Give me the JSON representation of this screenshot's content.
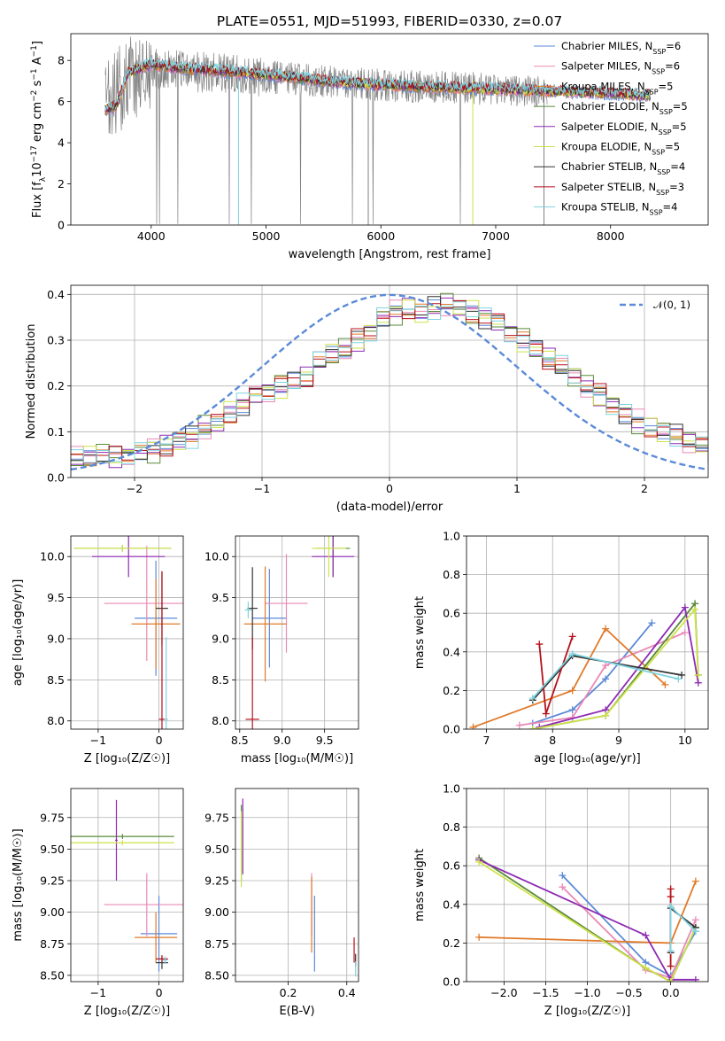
{
  "colors": {
    "chabrier_miles": "#5b8ad8",
    "salpeter_miles": "#e98ab6",
    "kroupa_miles": "#e07a2a",
    "chabrier_elodie": "#5a8a3a",
    "salpeter_elodie": "#8e2bb3",
    "kroupa_elodie": "#cde24a",
    "chabrier_stelib": "#333333",
    "salpeter_stelib": "#b5121b",
    "kroupa_stelib": "#7fd3e0",
    "data": "#808080",
    "normal": "#5b8ad8",
    "grid": "#b0b0b0"
  },
  "chart_data": [
    {
      "type": "line",
      "title": "PLATE=0551, MJD=51993, FIBERID=0330, z=0.07",
      "xlabel": "wavelength [Angstrom, rest frame]",
      "ylabel": "Flux [f$_\\lambda$10$^{-17}$ erg cm$^{-2}$ s$^{-1}$ A$^{-1}$]",
      "xlim": [
        3300,
        8850
      ],
      "ylim": [
        0,
        9.3
      ],
      "xticks": [
        "4000",
        "5000",
        "6000",
        "7000",
        "8000"
      ],
      "yticks": [
        "0",
        "2",
        "4",
        "6",
        "8"
      ],
      "legend_position": "top-right",
      "grid": false,
      "legend": [
        {
          "label": "Chabrier MILES, N",
          "sub": "SSP",
          "suffix": "=6",
          "color_key": "chabrier_miles"
        },
        {
          "label": "Salpeter MILES, N",
          "sub": "SSP",
          "suffix": "=6",
          "color_key": "salpeter_miles"
        },
        {
          "label": "Kroupa MILES, N",
          "sub": "SSP",
          "suffix": "=5",
          "color_key": "kroupa_miles"
        },
        {
          "label": "Chabrier ELODIE, N",
          "sub": "SSP",
          "suffix": "=5",
          "color_key": "chabrier_elodie"
        },
        {
          "label": "Salpeter ELODIE, N",
          "sub": "SSP",
          "suffix": "=5",
          "color_key": "salpeter_elodie"
        },
        {
          "label": "Kroupa ELODIE, N",
          "sub": "SSP",
          "suffix": "=5",
          "color_key": "kroupa_elodie"
        },
        {
          "label": "Chabrier STELIB, N",
          "sub": "SSP",
          "suffix": "=4",
          "color_key": "chabrier_stelib"
        },
        {
          "label": "Salpeter STELIB, N",
          "sub": "SSP",
          "suffix": "=3",
          "color_key": "salpeter_stelib"
        },
        {
          "label": "Kroupa STELIB, N",
          "sub": "SSP",
          "suffix": "=4",
          "color_key": "kroupa_stelib"
        }
      ],
      "series": [
        {
          "name": "data",
          "wavelength_range": [
            3600,
            7450
          ],
          "level_approx": [
            [
              3600,
              5.6
            ],
            [
              3800,
              7.2
            ],
            [
              4000,
              7.6
            ],
            [
              4500,
              7.4
            ],
            [
              5000,
              7.2
            ],
            [
              5500,
              7.0
            ],
            [
              6000,
              6.8
            ],
            [
              6500,
              6.7
            ],
            [
              7000,
              6.6
            ],
            [
              7400,
              6.5
            ]
          ],
          "color_key": "data"
        },
        {
          "name": "models",
          "wavelength_range": [
            3600,
            8350
          ],
          "level_approx": [
            [
              3600,
              5.6
            ],
            [
              3700,
              5.8
            ],
            [
              3800,
              7.4
            ],
            [
              4000,
              7.8
            ],
            [
              4300,
              7.6
            ],
            [
              4600,
              7.5
            ],
            [
              5000,
              7.3
            ],
            [
              5500,
              7.0
            ],
            [
              6000,
              6.8
            ],
            [
              6500,
              6.7
            ],
            [
              7000,
              6.6
            ],
            [
              7500,
              6.5
            ],
            [
              8000,
              6.4
            ],
            [
              8350,
              6.3
            ]
          ]
        }
      ]
    },
    {
      "type": "bar",
      "xlabel": "(data-model)/error",
      "ylabel": "Normed distribution",
      "xlim": [
        -2.5,
        2.5
      ],
      "ylim": [
        0,
        0.42
      ],
      "xticks": [
        "−2",
        "−1",
        "0",
        "1",
        "2"
      ],
      "yticks": [
        "0.0",
        "0.1",
        "0.2",
        "0.3",
        "0.4"
      ],
      "grid": true,
      "legend_label": "𝒩(0, 1)",
      "legend_position": "top-right",
      "bin_width": 0.1,
      "bin_start": -2.5,
      "series": [
        {
          "name": "histogram",
          "values": [
            0.04,
            0.045,
            0.05,
            0.045,
            0.05,
            0.055,
            0.06,
            0.07,
            0.08,
            0.09,
            0.11,
            0.12,
            0.14,
            0.16,
            0.18,
            0.19,
            0.2,
            0.21,
            0.22,
            0.25,
            0.27,
            0.28,
            0.3,
            0.32,
            0.35,
            0.36,
            0.37,
            0.36,
            0.37,
            0.38,
            0.37,
            0.36,
            0.35,
            0.34,
            0.32,
            0.3,
            0.28,
            0.26,
            0.24,
            0.22,
            0.2,
            0.18,
            0.16,
            0.14,
            0.12,
            0.11,
            0.1,
            0.09,
            0.08,
            0.07,
            0.06
          ]
        },
        {
          "name": "𝒩(0, 1)",
          "type": "line",
          "function": "normal_pdf",
          "mean": 0,
          "sd": 1,
          "color_key": "normal"
        }
      ]
    },
    {
      "type": "scatter",
      "xlabel": "Z [log₁₀(Z/Z☉)]",
      "ylabel": "age [log₁₀(age/yr)]",
      "xlim": [
        -1.45,
        0.4
      ],
      "ylim": [
        7.9,
        10.25
      ],
      "xticks": [
        "−1",
        "0"
      ],
      "yticks": [
        "8.0",
        "8.5",
        "9.0",
        "9.5",
        "10.0"
      ],
      "grid": true,
      "points": [
        {
          "c": "chabrier_miles",
          "x": -0.05,
          "y": 9.25,
          "xerr": 0.35,
          "yerr": 0.7
        },
        {
          "c": "salpeter_miles",
          "x": -0.2,
          "y": 9.43,
          "xerr": 0.7,
          "yerr": 0.7
        },
        {
          "c": "kroupa_miles",
          "x": -0.05,
          "y": 9.18,
          "xerr": 0.4,
          "yerr": 0.55
        },
        {
          "c": "chabrier_elodie",
          "x": -0.6,
          "y": 10.1,
          "xerr": 0.8,
          "yerr": 0.04
        },
        {
          "c": "salpeter_elodie",
          "x": -0.5,
          "y": 10.0,
          "xerr": 0.6,
          "yerr": 0.25
        },
        {
          "c": "kroupa_elodie",
          "x": -0.6,
          "y": 10.1,
          "xerr": 0.8,
          "yerr": 0.04
        },
        {
          "c": "chabrier_stelib",
          "x": 0.05,
          "y": 9.37,
          "xerr": 0.1,
          "yerr": 0.45
        },
        {
          "c": "salpeter_stelib",
          "x": 0.05,
          "y": 8.02,
          "xerr": 0.05,
          "yerr": 1.8
        },
        {
          "c": "kroupa_stelib",
          "x": 0.12,
          "y": 8.02,
          "xerr": 0.03,
          "yerr": 1.0
        }
      ]
    },
    {
      "type": "scatter",
      "xlabel": "mass [log₁₀(M/M☉)]",
      "xlim": [
        8.45,
        9.9
      ],
      "ylim": [
        7.9,
        10.25
      ],
      "xticks": [
        "8.5",
        "9.0",
        "9.5"
      ],
      "yticks": [
        "8.0",
        "8.5",
        "9.0",
        "9.5",
        "10.0"
      ],
      "grid": true,
      "points": [
        {
          "c": "chabrier_miles",
          "x": 8.85,
          "y": 9.25,
          "xerr": 0.2,
          "yerr": 0.6
        },
        {
          "c": "salpeter_miles",
          "x": 9.05,
          "y": 9.43,
          "xerr": 0.25,
          "yerr": 0.6
        },
        {
          "c": "kroupa_miles",
          "x": 8.8,
          "y": 9.18,
          "xerr": 0.25,
          "yerr": 0.7
        },
        {
          "c": "chabrier_elodie",
          "x": 9.6,
          "y": 10.1,
          "xerr": 0.2,
          "yerr": 0.35
        },
        {
          "c": "salpeter_elodie",
          "x": 9.6,
          "y": 10.0,
          "xerr": 0.25,
          "yerr": 0.25
        },
        {
          "c": "kroupa_elodie",
          "x": 9.55,
          "y": 10.1,
          "xerr": 0.2,
          "yerr": 0.35
        },
        {
          "c": "chabrier_stelib",
          "x": 8.65,
          "y": 9.37,
          "xerr": 0.06,
          "yerr": 0.5
        },
        {
          "c": "salpeter_stelib",
          "x": 8.65,
          "y": 8.02,
          "xerr": 0.08,
          "yerr": 1.0
        },
        {
          "c": "kroupa_stelib",
          "x": 8.6,
          "y": 9.35,
          "xerr": 0.04,
          "yerr": 0.1
        }
      ]
    },
    {
      "type": "line",
      "xlabel": "age [log₁₀(age/yr)]",
      "ylabel": "mass weight",
      "xlim": [
        6.7,
        10.35
      ],
      "ylim": [
        0,
        1.0
      ],
      "xticks": [
        "7",
        "8",
        "9",
        "10"
      ],
      "yticks": [
        "0.0",
        "0.2",
        "0.4",
        "0.6",
        "0.8",
        "1.0"
      ],
      "grid": true,
      "series": [
        {
          "c": "chabrier_miles",
          "x": [
            7.7,
            8.3,
            8.8,
            9.5
          ],
          "y": [
            0.03,
            0.1,
            0.26,
            0.55
          ]
        },
        {
          "c": "salpeter_miles",
          "x": [
            7.5,
            8.3,
            8.8,
            10.0
          ],
          "y": [
            0.02,
            0.06,
            0.33,
            0.5
          ]
        },
        {
          "c": "kroupa_miles",
          "x": [
            6.8,
            8.3,
            8.8,
            9.7
          ],
          "y": [
            0.01,
            0.2,
            0.52,
            0.23
          ]
        },
        {
          "c": "chabrier_elodie",
          "x": [
            7.7,
            8.8,
            10.15,
            10.2
          ],
          "y": [
            0.0,
            0.07,
            0.65,
            0.28
          ]
        },
        {
          "c": "salpeter_elodie",
          "x": [
            7.8,
            8.8,
            10.0,
            10.2
          ],
          "y": [
            0.01,
            0.1,
            0.63,
            0.24
          ]
        },
        {
          "c": "kroupa_elodie",
          "x": [
            7.7,
            8.8,
            10.15,
            10.2
          ],
          "y": [
            0.0,
            0.07,
            0.62,
            0.28
          ]
        },
        {
          "c": "chabrier_stelib",
          "x": [
            7.7,
            8.3,
            9.95
          ],
          "y": [
            0.15,
            0.38,
            0.28
          ]
        },
        {
          "c": "salpeter_stelib",
          "x": [
            7.8,
            7.9,
            8.3
          ],
          "y": [
            0.44,
            0.08,
            0.48
          ]
        },
        {
          "c": "kroupa_stelib",
          "x": [
            7.7,
            8.3,
            9.9
          ],
          "y": [
            0.16,
            0.39,
            0.26
          ]
        }
      ]
    },
    {
      "type": "scatter",
      "xlabel": "Z [log₁₀(Z/Z☉)]",
      "ylabel": "mass [log₁₀(M/M☉)]",
      "xlim": [
        -1.45,
        0.4
      ],
      "ylim": [
        8.45,
        9.98
      ],
      "xticks": [
        "−1",
        "0"
      ],
      "yticks": [
        "8.50",
        "8.75",
        "9.00",
        "9.25",
        "9.50",
        "9.75"
      ],
      "grid": true,
      "points": [
        {
          "c": "chabrier_miles",
          "x": 0.0,
          "y": 8.83,
          "xerr": 0.3,
          "yerr": 0.3
        },
        {
          "c": "salpeter_miles",
          "x": -0.2,
          "y": 9.06,
          "xerr": 0.7,
          "yerr": 0.25
        },
        {
          "c": "kroupa_miles",
          "x": -0.05,
          "y": 8.8,
          "xerr": 0.35,
          "yerr": 0.2
        },
        {
          "c": "chabrier_elodie",
          "x": -0.6,
          "y": 9.6,
          "xerr": 0.85,
          "yerr": 0.02
        },
        {
          "c": "salpeter_elodie",
          "x": -0.7,
          "y": 9.57,
          "xerr": 0.02,
          "yerr": 0.32
        },
        {
          "c": "kroupa_elodie",
          "x": -0.6,
          "y": 9.55,
          "xerr": 0.85,
          "yerr": 0.02
        },
        {
          "c": "chabrier_stelib",
          "x": 0.05,
          "y": 8.6,
          "xerr": 0.1,
          "yerr": 0.05
        },
        {
          "c": "salpeter_stelib",
          "x": 0.05,
          "y": 8.63,
          "xerr": 0.1,
          "yerr": 0.03
        },
        {
          "c": "kroupa_stelib",
          "x": 0.1,
          "y": 8.62,
          "xerr": 0.04,
          "yerr": 0.03
        }
      ]
    },
    {
      "type": "scatter",
      "xlabel": "E(B-V)",
      "xlim": [
        0.02,
        0.44
      ],
      "ylim": [
        8.45,
        9.98
      ],
      "xticks": [
        "0.2",
        "0.4"
      ],
      "yticks": [
        "8.50",
        "8.75",
        "9.00",
        "9.25",
        "9.50",
        "9.75"
      ],
      "grid": true,
      "points": [
        {
          "c": "chabrier_miles",
          "x": 0.29,
          "y": 8.83,
          "xerr": 0.0,
          "yerr": 0.3
        },
        {
          "c": "salpeter_miles",
          "x": 0.28,
          "y": 9.06,
          "xerr": 0.0,
          "yerr": 0.25
        },
        {
          "c": "kroupa_miles",
          "x": 0.28,
          "y": 8.98,
          "xerr": 0.0,
          "yerr": 0.3
        },
        {
          "c": "chabrier_elodie",
          "x": 0.04,
          "y": 9.55,
          "xerr": 0.0,
          "yerr": 0.3
        },
        {
          "c": "salpeter_elodie",
          "x": 0.045,
          "y": 9.6,
          "xerr": 0.0,
          "yerr": 0.3
        },
        {
          "c": "kroupa_elodie",
          "x": 0.04,
          "y": 9.5,
          "xerr": 0.0,
          "yerr": 0.3
        },
        {
          "c": "chabrier_stelib",
          "x": 0.43,
          "y": 8.62,
          "xerr": 0.0,
          "yerr": 0.05
        },
        {
          "c": "salpeter_stelib",
          "x": 0.425,
          "y": 8.7,
          "xerr": 0.0,
          "yerr": 0.1
        },
        {
          "c": "kroupa_stelib",
          "x": 0.43,
          "y": 8.55,
          "xerr": 0.0,
          "yerr": 0.06
        }
      ]
    },
    {
      "type": "line",
      "xlabel": "Z [log₁₀(Z/Z☉)]",
      "ylabel": "mass weight",
      "xlim": [
        -2.45,
        0.45
      ],
      "ylim": [
        0,
        1.0
      ],
      "xticks": [
        "−2.0",
        "−1.5",
        "−1.0",
        "−0.5",
        "0.0"
      ],
      "yticks": [
        "0.0",
        "0.2",
        "0.4",
        "0.6",
        "0.8",
        "1.0"
      ],
      "grid": true,
      "series": [
        {
          "c": "chabrier_miles",
          "x": [
            -1.3,
            -0.3,
            0.0,
            0.3
          ],
          "y": [
            0.55,
            0.1,
            0.03,
            0.26
          ]
        },
        {
          "c": "salpeter_miles",
          "x": [
            -1.3,
            -0.3,
            0.0,
            0.3
          ],
          "y": [
            0.49,
            0.06,
            0.02,
            0.32
          ]
        },
        {
          "c": "kroupa_miles",
          "x": [
            -2.3,
            0.0,
            0.3
          ],
          "y": [
            0.23,
            0.2,
            0.52
          ]
        },
        {
          "c": "chabrier_elodie",
          "x": [
            -2.3,
            -0.3,
            0.0,
            0.3
          ],
          "y": [
            0.64,
            0.07,
            0.0,
            0.28
          ]
        },
        {
          "c": "salpeter_elodie",
          "x": [
            -2.3,
            -0.3,
            0.0,
            0.3
          ],
          "y": [
            0.63,
            0.24,
            0.01,
            0.01
          ]
        },
        {
          "c": "kroupa_elodie",
          "x": [
            -2.3,
            -0.3,
            0.0,
            0.3
          ],
          "y": [
            0.62,
            0.07,
            0.0,
            0.28
          ]
        },
        {
          "c": "chabrier_stelib",
          "x": [
            0.0,
            0.0,
            0.3
          ],
          "y": [
            0.15,
            0.38,
            0.28
          ]
        },
        {
          "c": "salpeter_stelib",
          "x": [
            0.0,
            0.0,
            0.0
          ],
          "y": [
            0.44,
            0.08,
            0.48
          ]
        },
        {
          "c": "kroupa_stelib",
          "x": [
            0.0,
            0.0,
            0.3
          ],
          "y": [
            0.16,
            0.39,
            0.26
          ]
        }
      ]
    }
  ]
}
